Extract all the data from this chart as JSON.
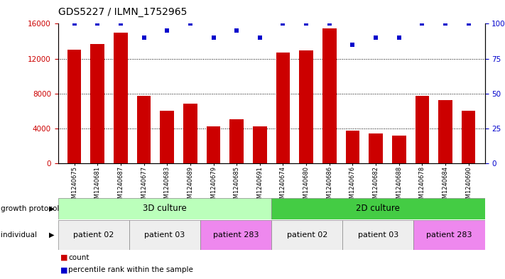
{
  "title": "GDS5227 / ILMN_1752965",
  "samples": [
    "GSM1240675",
    "GSM1240681",
    "GSM1240687",
    "GSM1240677",
    "GSM1240683",
    "GSM1240689",
    "GSM1240679",
    "GSM1240685",
    "GSM1240691",
    "GSM1240674",
    "GSM1240680",
    "GSM1240686",
    "GSM1240676",
    "GSM1240682",
    "GSM1240688",
    "GSM1240678",
    "GSM1240684",
    "GSM1240690"
  ],
  "counts": [
    13000,
    13700,
    15000,
    7700,
    6000,
    6800,
    4200,
    5000,
    4200,
    12700,
    12900,
    15500,
    3700,
    3400,
    3200,
    7700,
    7200,
    6000
  ],
  "percentile_ranks": [
    100,
    100,
    100,
    90,
    95,
    100,
    90,
    95,
    90,
    100,
    100,
    100,
    85,
    90,
    90,
    100,
    100,
    100
  ],
  "bar_color": "#cc0000",
  "percentile_color": "#0000cc",
  "growth_3d_color": "#bbffbb",
  "growth_2d_color": "#44cc44",
  "patient02_color": "#eeeeee",
  "patient03_color": "#eeeeee",
  "patient283_color": "#ee88ee",
  "ylim_left": [
    0,
    16000
  ],
  "ylim_right": [
    0,
    100
  ],
  "yticks_left": [
    0,
    4000,
    8000,
    12000,
    16000
  ],
  "yticks_right": [
    0,
    25,
    50,
    75,
    100
  ],
  "background_color": "#ffffff"
}
